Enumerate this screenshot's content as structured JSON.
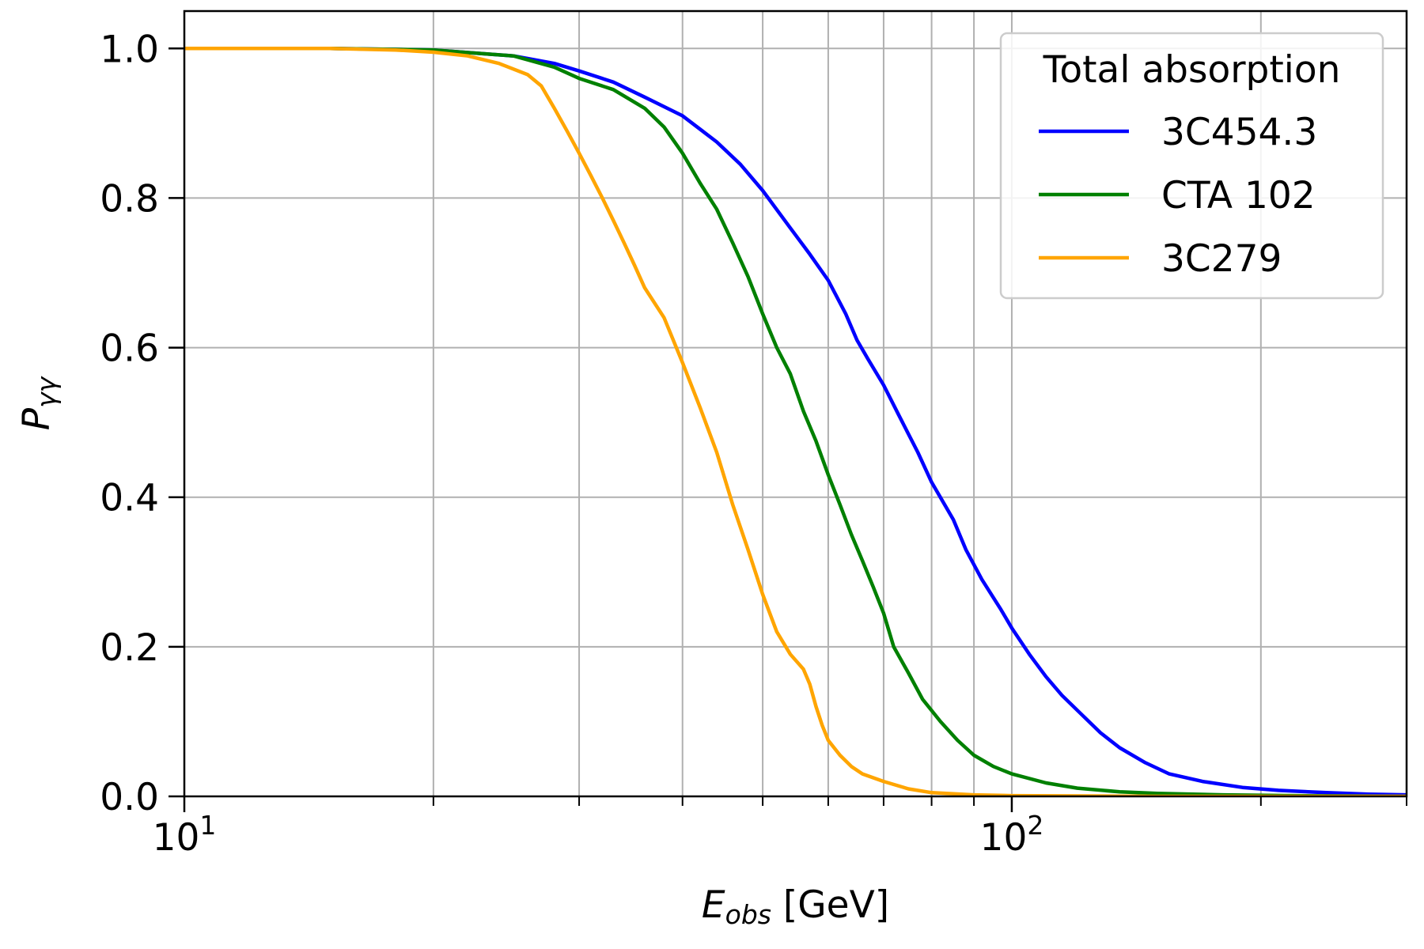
{
  "chart_data": {
    "type": "line",
    "xscale": "log",
    "xlim": [
      10,
      300
    ],
    "ylim": [
      0,
      1.05
    ],
    "grid": true,
    "xlabel": {
      "symbol": "E",
      "subscript": "obs",
      "unit": " [GeV]"
    },
    "ylabel": {
      "symbol": "P",
      "subscript": "γγ"
    },
    "x_major_ticks": [
      {
        "value": 10,
        "base": "10",
        "exp": "1"
      },
      {
        "value": 100,
        "base": "10",
        "exp": "2"
      }
    ],
    "x_minor_ticks": [
      20,
      30,
      40,
      50,
      60,
      70,
      80,
      90,
      200,
      300
    ],
    "y_ticks": [
      {
        "value": 0.0,
        "label": "0.0"
      },
      {
        "value": 0.2,
        "label": "0.2"
      },
      {
        "value": 0.4,
        "label": "0.4"
      },
      {
        "value": 0.6,
        "label": "0.6"
      },
      {
        "value": 0.8,
        "label": "0.8"
      },
      {
        "value": 1.0,
        "label": "1.0"
      }
    ],
    "legend": {
      "title": "Total absorption",
      "placement": "top-right"
    },
    "series": [
      {
        "name": "3C454.3",
        "color": "#0000ff",
        "points": [
          [
            10,
            1.0
          ],
          [
            15,
            1.0
          ],
          [
            20,
            0.998
          ],
          [
            25,
            0.99
          ],
          [
            28,
            0.98
          ],
          [
            30,
            0.97
          ],
          [
            33,
            0.955
          ],
          [
            36,
            0.935
          ],
          [
            40,
            0.91
          ],
          [
            44,
            0.875
          ],
          [
            47,
            0.845
          ],
          [
            50,
            0.81
          ],
          [
            54,
            0.76
          ],
          [
            57,
            0.725
          ],
          [
            60,
            0.69
          ],
          [
            63,
            0.645
          ],
          [
            65,
            0.61
          ],
          [
            67,
            0.585
          ],
          [
            70,
            0.55
          ],
          [
            73,
            0.51
          ],
          [
            77,
            0.46
          ],
          [
            80,
            0.42
          ],
          [
            85,
            0.37
          ],
          [
            88,
            0.33
          ],
          [
            92,
            0.29
          ],
          [
            97,
            0.25
          ],
          [
            100,
            0.225
          ],
          [
            105,
            0.19
          ],
          [
            110,
            0.16
          ],
          [
            115,
            0.135
          ],
          [
            120,
            0.115
          ],
          [
            128,
            0.085
          ],
          [
            135,
            0.065
          ],
          [
            145,
            0.045
          ],
          [
            155,
            0.03
          ],
          [
            170,
            0.02
          ],
          [
            190,
            0.012
          ],
          [
            210,
            0.008
          ],
          [
            240,
            0.005
          ],
          [
            270,
            0.003
          ],
          [
            300,
            0.002
          ]
        ]
      },
      {
        "name": "CTA 102",
        "color": "#008000",
        "points": [
          [
            10,
            1.0
          ],
          [
            15,
            1.0
          ],
          [
            20,
            0.998
          ],
          [
            25,
            0.99
          ],
          [
            28,
            0.975
          ],
          [
            30,
            0.96
          ],
          [
            33,
            0.945
          ],
          [
            36,
            0.92
          ],
          [
            38,
            0.895
          ],
          [
            40,
            0.86
          ],
          [
            42,
            0.82
          ],
          [
            44,
            0.785
          ],
          [
            46,
            0.74
          ],
          [
            48,
            0.695
          ],
          [
            50,
            0.645
          ],
          [
            52,
            0.6
          ],
          [
            54,
            0.565
          ],
          [
            56,
            0.515
          ],
          [
            58,
            0.475
          ],
          [
            60,
            0.43
          ],
          [
            62,
            0.39
          ],
          [
            64,
            0.35
          ],
          [
            66,
            0.315
          ],
          [
            68,
            0.28
          ],
          [
            70,
            0.245
          ],
          [
            72,
            0.2
          ],
          [
            75,
            0.165
          ],
          [
            78,
            0.13
          ],
          [
            82,
            0.1
          ],
          [
            86,
            0.075
          ],
          [
            90,
            0.055
          ],
          [
            95,
            0.04
          ],
          [
            100,
            0.03
          ],
          [
            110,
            0.018
          ],
          [
            120,
            0.011
          ],
          [
            135,
            0.006
          ],
          [
            150,
            0.004
          ],
          [
            180,
            0.002
          ],
          [
            220,
            0.001
          ],
          [
            300,
            0.0
          ]
        ]
      },
      {
        "name": "3C279",
        "color": "#ffa500",
        "points": [
          [
            10,
            1.0
          ],
          [
            15,
            1.0
          ],
          [
            18,
            0.998
          ],
          [
            20,
            0.995
          ],
          [
            22,
            0.99
          ],
          [
            24,
            0.98
          ],
          [
            26,
            0.965
          ],
          [
            27,
            0.95
          ],
          [
            28,
            0.92
          ],
          [
            29,
            0.89
          ],
          [
            30,
            0.86
          ],
          [
            31,
            0.83
          ],
          [
            32,
            0.8
          ],
          [
            33,
            0.77
          ],
          [
            34,
            0.74
          ],
          [
            35,
            0.71
          ],
          [
            36,
            0.68
          ],
          [
            38,
            0.64
          ],
          [
            40,
            0.58
          ],
          [
            42,
            0.52
          ],
          [
            44,
            0.46
          ],
          [
            46,
            0.39
          ],
          [
            48,
            0.33
          ],
          [
            50,
            0.27
          ],
          [
            52,
            0.22
          ],
          [
            54,
            0.19
          ],
          [
            56,
            0.17
          ],
          [
            57,
            0.15
          ],
          [
            58,
            0.12
          ],
          [
            59,
            0.095
          ],
          [
            60,
            0.075
          ],
          [
            62,
            0.055
          ],
          [
            64,
            0.04
          ],
          [
            66,
            0.03
          ],
          [
            70,
            0.02
          ],
          [
            75,
            0.01
          ],
          [
            80,
            0.005
          ],
          [
            90,
            0.002
          ],
          [
            100,
            0.001
          ],
          [
            150,
            0.0
          ],
          [
            300,
            0.0
          ]
        ]
      }
    ]
  }
}
